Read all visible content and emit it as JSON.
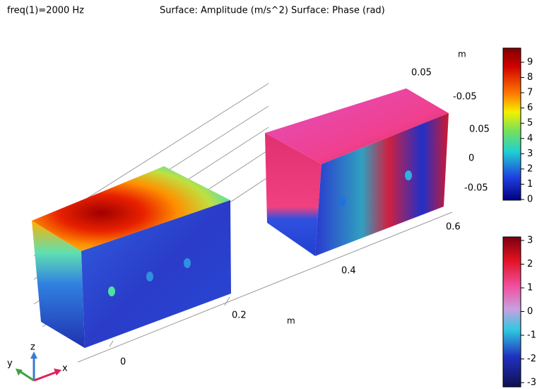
{
  "header": {
    "parameter": "freq(1)=2000 Hz",
    "title": "Surface: Amplitude (m/s^2) Surface: Phase (rad)"
  },
  "axes": {
    "x_ticks": [
      "0",
      "0.2",
      "0.4",
      "0.6"
    ],
    "x_unit": "m",
    "y_ticks": [
      "0.05",
      "-0.05"
    ],
    "z_ticks": [
      "0.05",
      "0",
      "-0.05"
    ],
    "z_unit": "m"
  },
  "triad": {
    "x": "x",
    "y": "y",
    "z": "z"
  },
  "colorbars": [
    {
      "ticks": [
        9,
        8,
        7,
        6,
        5,
        4,
        3,
        2,
        1,
        0
      ]
    },
    {
      "ticks": [
        3,
        2,
        1,
        0,
        -1,
        -2,
        -3
      ]
    }
  ]
}
